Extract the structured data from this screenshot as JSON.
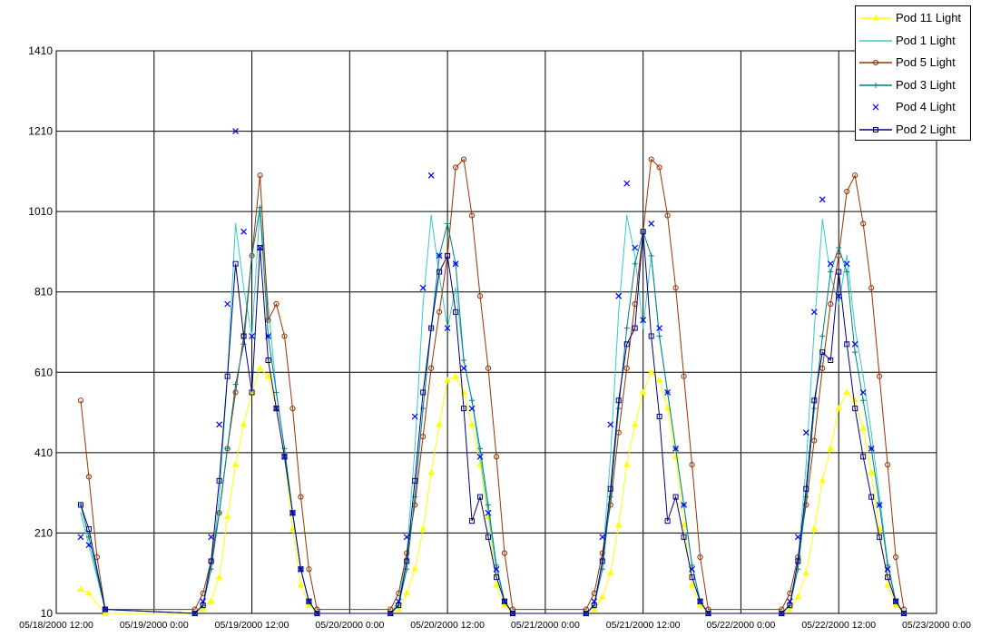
{
  "chart_data": {
    "type": "line",
    "title": "",
    "xlabel": "",
    "ylabel": "",
    "xlim": [
      "05/18/2000 12:00",
      "05/23/2000 0:00"
    ],
    "ylim": [
      10,
      1410
    ],
    "grid": true,
    "legend_position": "top-right",
    "y_ticks": [
      "10",
      "210",
      "410",
      "610",
      "810",
      "1010",
      "1210",
      "1410"
    ],
    "x_ticks": [
      "05/18/2000 12:00",
      "05/19/2000 0:00",
      "05/19/2000 12:00",
      "05/20/2000 0:00",
      "05/20/2000 12:00",
      "05/21/2000 0:00",
      "05/21/2000 12:00",
      "05/22/2000 0:00",
      "05/22/2000 12:00",
      "05/23/2000 0:00"
    ],
    "series": [
      {
        "name": "Pod 11 Light",
        "color": "#ffff00",
        "marker": "triangle",
        "x": [
          "05/18 15:00",
          "05/18 16:00",
          "05/18 18:00",
          "05/19 05:00",
          "05/19 06:00",
          "05/19 07:00",
          "05/19 08:00",
          "05/19 09:00",
          "05/19 10:00",
          "05/19 11:00",
          "05/19 12:00",
          "05/19 13:00",
          "05/19 14:00",
          "05/19 15:00",
          "05/19 16:00",
          "05/19 17:00",
          "05/19 18:00",
          "05/19 19:00",
          "05/19 20:00",
          "05/20 05:00",
          "05/20 06:00",
          "05/20 07:00",
          "05/20 08:00",
          "05/20 09:00",
          "05/20 10:00",
          "05/20 11:00",
          "05/20 12:00",
          "05/20 13:00",
          "05/20 14:00",
          "05/20 15:00",
          "05/20 16:00",
          "05/20 17:00",
          "05/20 18:00",
          "05/20 19:00",
          "05/20 20:00",
          "05/21 05:00",
          "05/21 06:00",
          "05/21 07:00",
          "05/21 08:00",
          "05/21 09:00",
          "05/21 10:00",
          "05/21 11:00",
          "05/21 12:00",
          "05/21 13:00",
          "05/21 14:00",
          "05/21 15:00",
          "05/21 16:00",
          "05/21 17:00",
          "05/21 18:00",
          "05/21 19:00",
          "05/21 20:00",
          "05/22 05:00",
          "05/22 06:00",
          "05/22 07:00",
          "05/22 08:00",
          "05/22 09:00",
          "05/22 10:00",
          "05/22 11:00",
          "05/22 12:00",
          "05/22 13:00",
          "05/22 14:00",
          "05/22 15:00",
          "05/22 16:00",
          "05/22 17:00",
          "05/22 18:00",
          "05/22 19:00",
          "05/22 20:00"
        ],
        "y": [
          70,
          60,
          10,
          10,
          20,
          40,
          100,
          250,
          380,
          480,
          560,
          620,
          600,
          520,
          400,
          220,
          80,
          30,
          10,
          10,
          20,
          60,
          120,
          220,
          360,
          480,
          590,
          600,
          560,
          480,
          380,
          250,
          80,
          30,
          10,
          10,
          20,
          50,
          110,
          230,
          380,
          480,
          560,
          610,
          590,
          520,
          400,
          230,
          80,
          30,
          10,
          10,
          20,
          50,
          110,
          220,
          340,
          420,
          520,
          560,
          540,
          470,
          360,
          220,
          80,
          30,
          10
        ]
      },
      {
        "name": "Pod 1 Light",
        "color": "#33cccc",
        "marker": "none",
        "x": [
          "05/18 15:00",
          "05/18 16:00",
          "05/18 18:00",
          "05/19 05:00",
          "05/19 06:00",
          "05/19 07:00",
          "05/19 08:00",
          "05/19 09:00",
          "05/19 10:00",
          "05/19 11:00",
          "05/19 12:00",
          "05/19 13:00",
          "05/19 14:00",
          "05/19 15:00",
          "05/19 16:00",
          "05/19 17:00",
          "05/19 18:00",
          "05/19 19:00",
          "05/19 20:00",
          "05/20 05:00",
          "05/20 06:00",
          "05/20 07:00",
          "05/20 08:00",
          "05/20 09:00",
          "05/20 10:00",
          "05/20 11:00",
          "05/20 12:00",
          "05/20 13:00",
          "05/20 14:00",
          "05/20 15:00",
          "05/20 16:00",
          "05/20 17:00",
          "05/20 18:00",
          "05/20 19:00",
          "05/20 20:00",
          "05/21 05:00",
          "05/21 06:00",
          "05/21 07:00",
          "05/21 08:00",
          "05/21 09:00",
          "05/21 10:00",
          "05/21 11:00",
          "05/21 12:00",
          "05/21 13:00",
          "05/21 14:00",
          "05/21 15:00",
          "05/21 16:00",
          "05/21 17:00",
          "05/21 18:00",
          "05/21 19:00",
          "05/21 20:00",
          "05/22 05:00",
          "05/22 06:00",
          "05/22 07:00",
          "05/22 08:00",
          "05/22 09:00",
          "05/22 10:00",
          "05/22 11:00",
          "05/22 12:00",
          "05/22 13:00",
          "05/22 14:00",
          "05/22 15:00",
          "05/22 16:00",
          "05/22 17:00",
          "05/22 18:00",
          "05/22 19:00",
          "05/22 20:00"
        ],
        "y": [
          260,
          180,
          20,
          10,
          30,
          120,
          300,
          600,
          980,
          820,
          700,
          1020,
          780,
          560,
          420,
          260,
          120,
          40,
          10,
          10,
          40,
          160,
          420,
          780,
          1000,
          850,
          720,
          820,
          640,
          540,
          400,
          260,
          120,
          40,
          10,
          10,
          30,
          140,
          400,
          760,
          1000,
          900,
          720,
          900,
          700,
          560,
          420,
          280,
          130,
          40,
          10,
          10,
          30,
          140,
          380,
          720,
          990,
          850,
          780,
          900,
          720,
          600,
          460,
          300,
          140,
          40,
          10
        ]
      },
      {
        "name": "Pod 5 Light",
        "color": "#993300",
        "marker": "circle",
        "x": [
          "05/18 15:00",
          "05/18 16:00",
          "05/18 17:00",
          "05/18 18:00",
          "05/19 05:00",
          "05/19 06:00",
          "05/19 07:00",
          "05/19 08:00",
          "05/19 09:00",
          "05/19 10:00",
          "05/19 11:00",
          "05/19 12:00",
          "05/19 13:00",
          "05/19 14:00",
          "05/19 15:00",
          "05/19 16:00",
          "05/19 17:00",
          "05/19 18:00",
          "05/19 19:00",
          "05/19 20:00",
          "05/20 05:00",
          "05/20 06:00",
          "05/20 07:00",
          "05/20 08:00",
          "05/20 09:00",
          "05/20 10:00",
          "05/20 11:00",
          "05/20 12:00",
          "05/20 13:00",
          "05/20 14:00",
          "05/20 15:00",
          "05/20 16:00",
          "05/20 17:00",
          "05/20 18:00",
          "05/20 19:00",
          "05/20 20:00",
          "05/21 05:00",
          "05/21 06:00",
          "05/21 07:00",
          "05/21 08:00",
          "05/21 09:00",
          "05/21 10:00",
          "05/21 11:00",
          "05/21 12:00",
          "05/21 13:00",
          "05/21 14:00",
          "05/21 15:00",
          "05/21 16:00",
          "05/21 17:00",
          "05/21 18:00",
          "05/21 19:00",
          "05/21 20:00",
          "05/22 05:00",
          "05/22 06:00",
          "05/22 07:00",
          "05/22 08:00",
          "05/22 09:00",
          "05/22 10:00",
          "05/22 11:00",
          "05/22 12:00",
          "05/22 13:00",
          "05/22 14:00",
          "05/22 15:00",
          "05/22 16:00",
          "05/22 17:00",
          "05/22 18:00",
          "05/22 19:00",
          "05/22 20:00"
        ],
        "y": [
          540,
          350,
          150,
          20,
          20,
          60,
          140,
          260,
          420,
          560,
          700,
          900,
          1100,
          740,
          780,
          700,
          520,
          300,
          120,
          20,
          20,
          60,
          160,
          280,
          450,
          620,
          760,
          900,
          1120,
          1140,
          1000,
          800,
          620,
          400,
          160,
          20,
          20,
          60,
          160,
          280,
          460,
          620,
          780,
          960,
          1140,
          1120,
          1000,
          820,
          600,
          380,
          150,
          20,
          20,
          60,
          150,
          280,
          440,
          620,
          780,
          900,
          1060,
          1100,
          980,
          820,
          600,
          380,
          150,
          20
        ]
      },
      {
        "name": "Pod 3 Light",
        "color": "#008080",
        "marker": "plus",
        "x": [
          "05/18 15:00",
          "05/18 16:00",
          "05/18 18:00",
          "05/19 05:00",
          "05/19 06:00",
          "05/19 07:00",
          "05/19 08:00",
          "05/19 09:00",
          "05/19 10:00",
          "05/19 11:00",
          "05/19 12:00",
          "05/19 13:00",
          "05/19 14:00",
          "05/19 15:00",
          "05/19 16:00",
          "05/19 17:00",
          "05/19 18:00",
          "05/19 19:00",
          "05/19 20:00",
          "05/20 05:00",
          "05/20 06:00",
          "05/20 07:00",
          "05/20 08:00",
          "05/20 09:00",
          "05/20 10:00",
          "05/20 11:00",
          "05/20 12:00",
          "05/20 13:00",
          "05/20 14:00",
          "05/20 15:00",
          "05/20 16:00",
          "05/20 17:00",
          "05/20 18:00",
          "05/20 19:00",
          "05/20 20:00",
          "05/21 05:00",
          "05/21 06:00",
          "05/21 07:00",
          "05/21 08:00",
          "05/21 09:00",
          "05/21 10:00",
          "05/21 11:00",
          "05/21 12:00",
          "05/21 13:00",
          "05/21 14:00",
          "05/21 15:00",
          "05/21 16:00",
          "05/21 17:00",
          "05/21 18:00",
          "05/21 19:00",
          "05/21 20:00",
          "05/22 05:00",
          "05/22 06:00",
          "05/22 07:00",
          "05/22 08:00",
          "05/22 09:00",
          "05/22 10:00",
          "05/22 11:00",
          "05/22 12:00",
          "05/22 13:00",
          "05/22 14:00",
          "05/22 15:00",
          "05/22 16:00",
          "05/22 17:00",
          "05/22 18:00",
          "05/22 19:00",
          "05/22 20:00"
        ],
        "y": [
          280,
          200,
          20,
          10,
          30,
          120,
          260,
          420,
          580,
          680,
          900,
          1020,
          700,
          560,
          420,
          260,
          120,
          40,
          10,
          10,
          30,
          120,
          300,
          520,
          720,
          900,
          980,
          880,
          640,
          540,
          420,
          280,
          130,
          40,
          10,
          10,
          30,
          120,
          300,
          520,
          720,
          880,
          960,
          900,
          700,
          560,
          420,
          280,
          130,
          40,
          10,
          10,
          30,
          120,
          300,
          520,
          700,
          860,
          920,
          860,
          660,
          540,
          420,
          280,
          130,
          40,
          10
        ]
      },
      {
        "name": "Pod 4 Light",
        "color": "#0000ff",
        "marker": "x",
        "x": [
          "05/18 15:00",
          "05/18 16:00",
          "05/18 18:00",
          "05/19 05:00",
          "05/19 06:00",
          "05/19 07:00",
          "05/19 08:00",
          "05/19 09:00",
          "05/19 10:00",
          "05/19 11:00",
          "05/19 12:00",
          "05/19 13:00",
          "05/19 14:00",
          "05/19 15:00",
          "05/19 16:00",
          "05/19 17:00",
          "05/19 18:00",
          "05/19 19:00",
          "05/19 20:00",
          "05/20 05:00",
          "05/20 06:00",
          "05/20 07:00",
          "05/20 08:00",
          "05/20 09:00",
          "05/20 10:00",
          "05/20 11:00",
          "05/20 12:00",
          "05/20 13:00",
          "05/20 14:00",
          "05/20 15:00",
          "05/20 16:00",
          "05/20 17:00",
          "05/20 18:00",
          "05/20 19:00",
          "05/20 20:00",
          "05/21 05:00",
          "05/21 06:00",
          "05/21 07:00",
          "05/21 08:00",
          "05/21 09:00",
          "05/21 10:00",
          "05/21 11:00",
          "05/21 12:00",
          "05/21 13:00",
          "05/21 14:00",
          "05/21 15:00",
          "05/21 16:00",
          "05/21 17:00",
          "05/21 18:00",
          "05/21 19:00",
          "05/21 20:00",
          "05/22 05:00",
          "05/22 06:00",
          "05/22 07:00",
          "05/22 08:00",
          "05/22 09:00",
          "05/22 10:00",
          "05/22 11:00",
          "05/22 12:00",
          "05/22 13:00",
          "05/22 14:00",
          "05/22 15:00",
          "05/22 16:00",
          "05/22 17:00",
          "05/22 18:00",
          "05/22 19:00",
          "05/22 20:00"
        ],
        "y": [
          200,
          180,
          20,
          10,
          40,
          200,
          480,
          780,
          1210,
          960,
          700,
          920,
          700,
          520,
          400,
          260,
          120,
          40,
          10,
          10,
          40,
          200,
          500,
          820,
          1100,
          900,
          720,
          880,
          620,
          520,
          400,
          260,
          120,
          40,
          10,
          10,
          40,
          200,
          480,
          800,
          1080,
          920,
          740,
          980,
          720,
          560,
          420,
          280,
          120,
          40,
          10,
          10,
          40,
          200,
          460,
          760,
          1040,
          880,
          800,
          880,
          680,
          560,
          420,
          280,
          120,
          40,
          10
        ]
      },
      {
        "name": "Pod 2 Light",
        "color": "#000080",
        "marker": "square",
        "x": [
          "05/18 15:00",
          "05/18 16:00",
          "05/18 18:00",
          "05/19 05:00",
          "05/19 06:00",
          "05/19 07:00",
          "05/19 08:00",
          "05/19 09:00",
          "05/19 10:00",
          "05/19 11:00",
          "05/19 12:00",
          "05/19 13:00",
          "05/19 14:00",
          "05/19 15:00",
          "05/19 16:00",
          "05/19 17:00",
          "05/19 18:00",
          "05/19 19:00",
          "05/19 20:00",
          "05/20 05:00",
          "05/20 06:00",
          "05/20 07:00",
          "05/20 08:00",
          "05/20 09:00",
          "05/20 10:00",
          "05/20 11:00",
          "05/20 12:00",
          "05/20 13:00",
          "05/20 14:00",
          "05/20 15:00",
          "05/20 16:00",
          "05/20 17:00",
          "05/20 18:00",
          "05/20 19:00",
          "05/20 20:00",
          "05/21 05:00",
          "05/21 06:00",
          "05/21 07:00",
          "05/21 08:00",
          "05/21 09:00",
          "05/21 10:00",
          "05/21 11:00",
          "05/21 12:00",
          "05/21 13:00",
          "05/21 14:00",
          "05/21 15:00",
          "05/21 16:00",
          "05/21 17:00",
          "05/21 18:00",
          "05/21 19:00",
          "05/21 20:00",
          "05/22 05:00",
          "05/22 06:00",
          "05/22 07:00",
          "05/22 08:00",
          "05/22 09:00",
          "05/22 10:00",
          "05/22 11:00",
          "05/22 12:00",
          "05/22 13:00",
          "05/22 14:00",
          "05/22 15:00",
          "05/22 16:00",
          "05/22 17:00",
          "05/22 18:00",
          "05/22 19:00",
          "05/22 20:00"
        ],
        "y": [
          280,
          220,
          20,
          10,
          30,
          140,
          340,
          600,
          880,
          700,
          560,
          920,
          640,
          520,
          400,
          260,
          120,
          40,
          10,
          10,
          30,
          140,
          340,
          560,
          720,
          860,
          900,
          760,
          520,
          240,
          300,
          200,
          100,
          40,
          10,
          10,
          30,
          140,
          320,
          540,
          680,
          720,
          960,
          700,
          500,
          240,
          300,
          200,
          100,
          40,
          10,
          10,
          30,
          140,
          320,
          540,
          660,
          640,
          860,
          680,
          520,
          400,
          300,
          200,
          100,
          40,
          10
        ]
      }
    ]
  }
}
